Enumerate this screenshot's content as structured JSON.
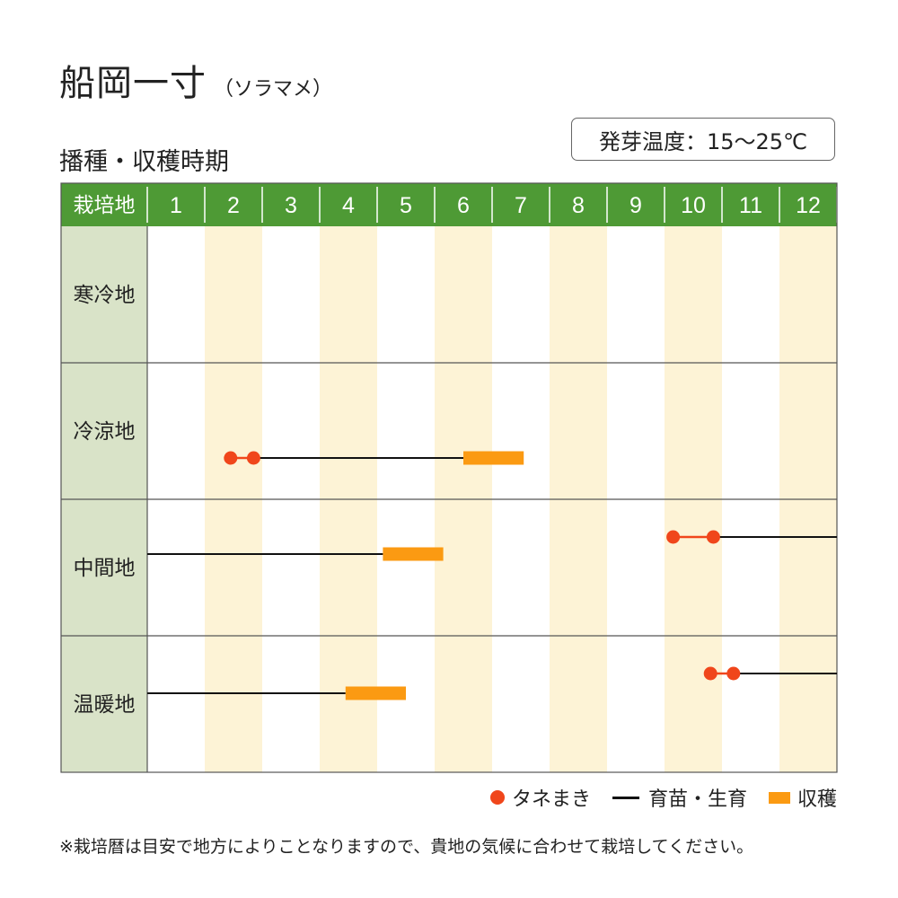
{
  "title": "船岡一寸",
  "title_sub": "（ソラマメ）",
  "subtitle": "播種・収穫時期",
  "temperature": "発芽温度：15～25℃",
  "footnote": "※栽培暦は目安で地方によりことなりますので、貴地の気候に合わせて栽培してください。",
  "colors": {
    "header_bg": "#4e9a35",
    "region_bg": "#d9e3c8",
    "stripe": "#fdf3d6",
    "sowing": "#f0461b",
    "harvest": "#fb9a12",
    "growing": "#111111",
    "grid": "#555555"
  },
  "legend": {
    "sowing": "タネまき",
    "growing": "育苗・生育",
    "harvest": "収穫"
  },
  "chart_data": {
    "type": "gantt",
    "header_label": "栽培地",
    "months": [
      "1",
      "2",
      "3",
      "4",
      "5",
      "6",
      "7",
      "8",
      "9",
      "10",
      "11",
      "12"
    ],
    "regions": [
      {
        "name": "寒冷地",
        "sowing": [],
        "growing": [],
        "harvest": []
      },
      {
        "name": "冷涼地",
        "sowing": [
          2.45,
          2.85
        ],
        "growing": [
          [
            2.85,
            6.5
          ]
        ],
        "harvest": [
          [
            6.5,
            7.55
          ]
        ]
      },
      {
        "name": "中間地",
        "sowing": [
          10.15,
          10.85
        ],
        "growing": [
          [
            1.0,
            5.1
          ],
          [
            10.85,
            13.0
          ]
        ],
        "harvest": [
          [
            5.1,
            6.15
          ]
        ]
      },
      {
        "name": "温暖地",
        "sowing": [
          10.8,
          11.2
        ],
        "growing": [
          [
            1.0,
            4.45
          ],
          [
            11.2,
            13.0
          ]
        ],
        "harvest": [
          [
            4.45,
            5.5
          ]
        ]
      }
    ]
  }
}
